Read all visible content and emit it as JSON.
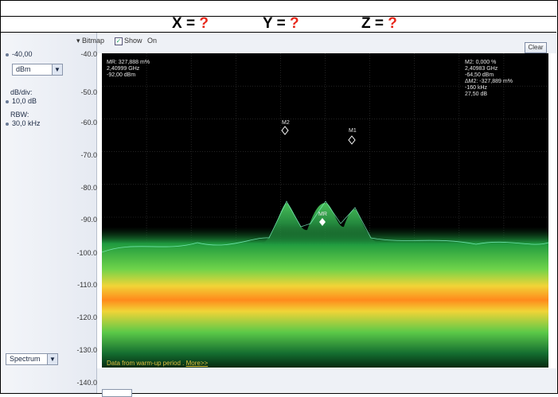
{
  "banner": {
    "x_label": "X = ",
    "x_value": "?",
    "y_label": "Y = ",
    "y_value": "?",
    "z_label": "Z = ",
    "z_value": "?"
  },
  "sidebar": {
    "ref_level": "-40,00",
    "unit_select": "dBm",
    "db_div_label": "dB/div:",
    "db_div_value": "10,0 dB",
    "rbw_label": "RBW:",
    "rbw_value": "30,0 kHz",
    "trace_select": "Spectrum"
  },
  "toolbar": {
    "bitmap_label": "Bitmap",
    "show_label": "Show",
    "on_label": "On",
    "clear_label": "Clear"
  },
  "y_axis_ticks": [
    "-40.0",
    "-50.0",
    "-60.0",
    "-70.0",
    "-80.0",
    "-90.0",
    "-100.0",
    "-110.0",
    "-120.0",
    "-130.0",
    "-140.0"
  ],
  "readout_left": [
    "MR: 327,888 m%",
    "2,40999 GHz",
    "-92,00 dBm"
  ],
  "readout_right": [
    "M2: 0,000 %",
    "2,40983 GHz",
    "-64,50 dBm",
    "ΔM2: -327,889 m%",
    "-160 kHz",
    "27,50 dB"
  ],
  "markers": {
    "m1": "M1",
    "m2": "M2",
    "mr": "MR"
  },
  "warmup": {
    "text": "Data from warm-up period .",
    "link": "More>>"
  },
  "colors": {
    "banner_question": "#e8291c",
    "trace_green": "#38e36a",
    "noise_yellow": "#f1d437",
    "noise_orange": "#ff8a1c",
    "plot_background": "#000000"
  }
}
